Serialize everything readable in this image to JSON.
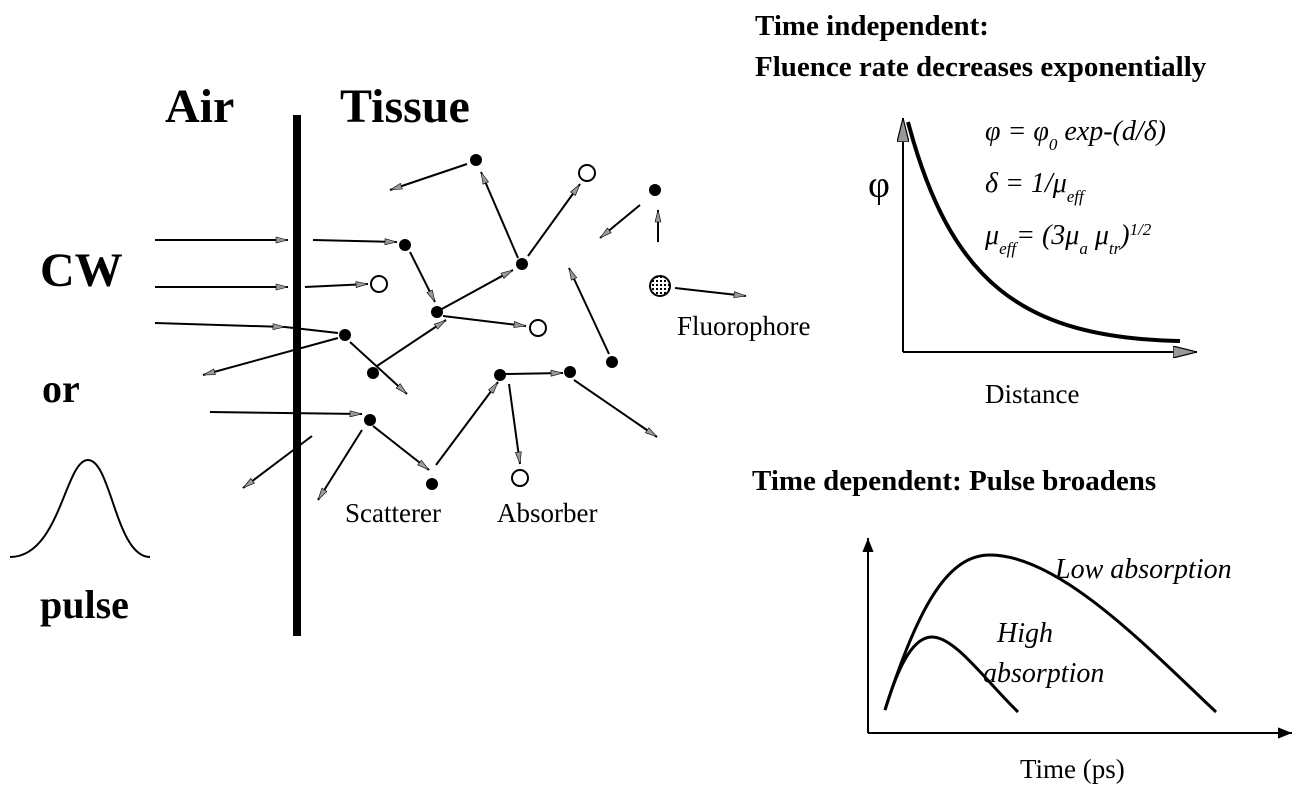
{
  "medium": {
    "left": "Air",
    "right": "Tissue"
  },
  "sources": {
    "cw": "CW",
    "or": "or",
    "pulse": "pulse"
  },
  "particles": {
    "scatterer": "Scatterer",
    "absorber": "Absorber",
    "fluorophore": "Fluorophore"
  },
  "time_independent": {
    "title": [
      "Time independent:",
      "Fluence rate decreases exponentially"
    ],
    "y_label": "φ",
    "x_label": "Distance",
    "equations": [
      [
        "φ = φ",
        "0",
        " exp-(d/δ)"
      ],
      [
        "δ = 1/μ",
        "eff"
      ],
      [
        "μ",
        "eff",
        "= (3μ",
        "a",
        " μ",
        "tr",
        ")",
        "1/2"
      ]
    ]
  },
  "time_dependent": {
    "title": "Time dependent: Pulse broadens",
    "x_label": "Time (ps)",
    "curves": {
      "low": "Low absorption",
      "high": [
        "High",
        "absorption"
      ]
    }
  }
}
